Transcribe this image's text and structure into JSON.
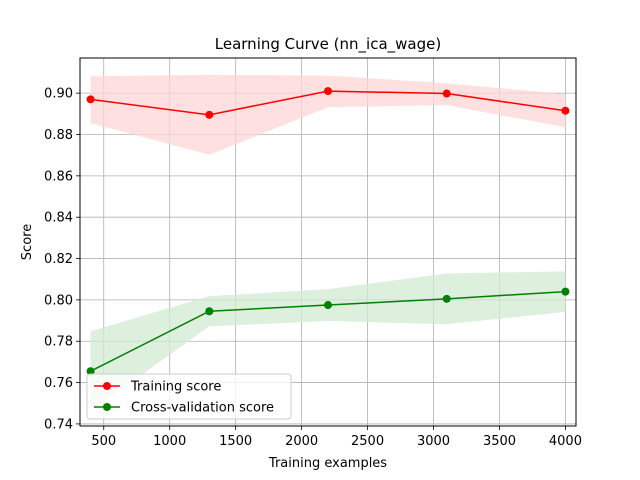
{
  "chart_data": {
    "type": "line",
    "title": "Learning Curve (nn_ica_wage)",
    "xlabel": "Training examples",
    "ylabel": "Score",
    "xlim": [
      320,
      4080
    ],
    "ylim": [
      0.739,
      0.917
    ],
    "xticks": [
      500,
      1000,
      1500,
      2000,
      2500,
      3000,
      3500,
      4000
    ],
    "xtick_labels": [
      "500",
      "1000",
      "1500",
      "2000",
      "2500",
      "3000",
      "3500",
      "4000"
    ],
    "yticks": [
      0.74,
      0.76,
      0.78,
      0.8,
      0.82,
      0.84,
      0.86,
      0.88,
      0.9
    ],
    "ytick_labels": [
      "0.74",
      "0.76",
      "0.78",
      "0.80",
      "0.82",
      "0.84",
      "0.86",
      "0.88",
      "0.90"
    ],
    "grid": true,
    "legend_position": "lower-left",
    "x": [
      400,
      1300,
      2200,
      3100,
      4000
    ],
    "series": [
      {
        "name": "Training score",
        "color": "#ff0000",
        "band_color": "#ffd6d6",
        "values": [
          0.897,
          0.8895,
          0.901,
          0.8998,
          0.8915
        ],
        "band_upper": [
          0.9082,
          0.9088,
          0.9085,
          0.9048,
          0.8995
        ],
        "band_lower": [
          0.8855,
          0.8702,
          0.8932,
          0.8942,
          0.8835
        ]
      },
      {
        "name": "Cross-validation score",
        "color": "#008000",
        "band_color": "#d2ead2",
        "values": [
          0.7655,
          0.7945,
          0.7975,
          0.8005,
          0.804
        ],
        "band_upper": [
          0.7848,
          0.8018,
          0.8052,
          0.8128,
          0.8138
        ],
        "band_lower": [
          0.7462,
          0.7872,
          0.7898,
          0.7882,
          0.7942
        ]
      }
    ]
  }
}
